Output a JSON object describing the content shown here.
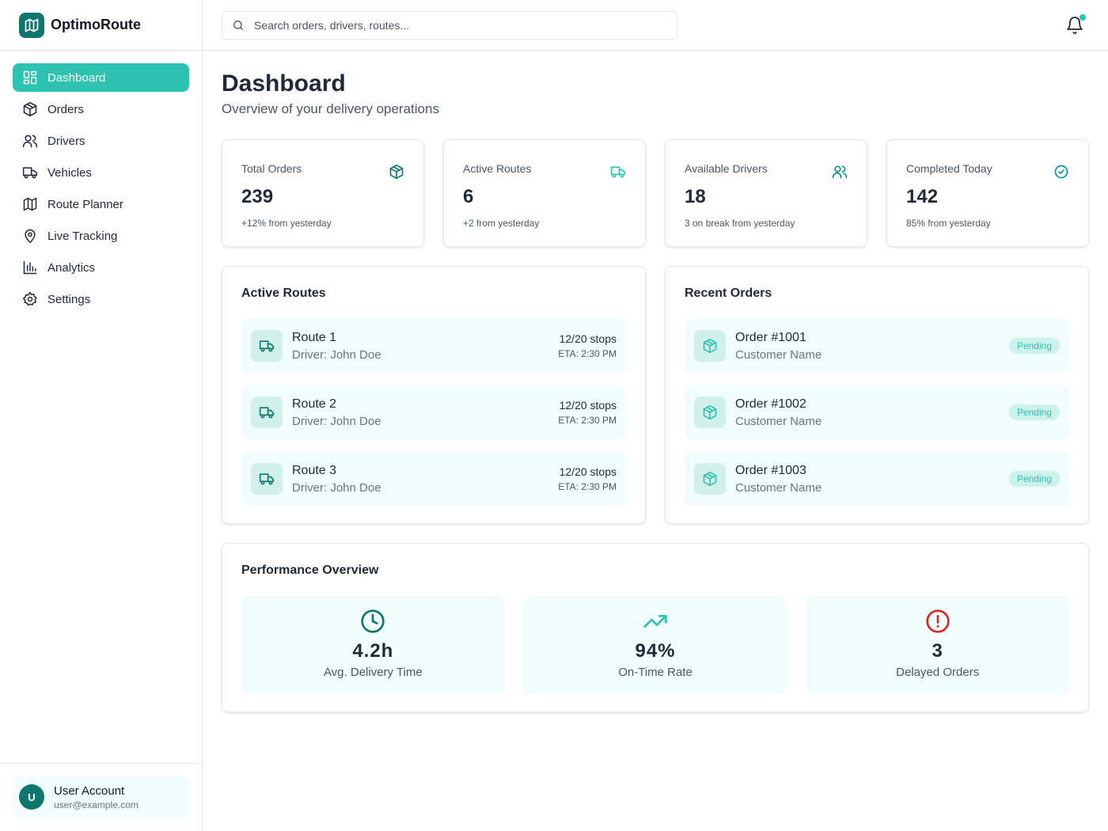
{
  "brand": {
    "name": "OptimoRoute",
    "logo_icon": "map-icon",
    "accent": "#2cc4b0",
    "brand_color": "#0f766e"
  },
  "sidebar": {
    "items": [
      {
        "label": "Dashboard",
        "icon": "dashboard-icon",
        "active": true
      },
      {
        "label": "Orders",
        "icon": "package-icon"
      },
      {
        "label": "Drivers",
        "icon": "users-icon"
      },
      {
        "label": "Vehicles",
        "icon": "truck-icon"
      },
      {
        "label": "Route Planner",
        "icon": "map-icon"
      },
      {
        "label": "Live Tracking",
        "icon": "map-pin-icon"
      },
      {
        "label": "Analytics",
        "icon": "bar-chart-icon"
      },
      {
        "label": "Settings",
        "icon": "gear-icon"
      }
    ],
    "user": {
      "initial": "U",
      "name": "User Account",
      "email": "user@example.com"
    }
  },
  "header": {
    "search_placeholder": "Search orders, drivers, routes...",
    "search_value": "",
    "notification_dot": true
  },
  "page": {
    "title": "Dashboard",
    "subtitle": "Overview of your delivery operations"
  },
  "stats": [
    {
      "label": "Total Orders",
      "value": "239",
      "sub": "+12% from yesterday",
      "icon": "package-icon"
    },
    {
      "label": "Active Routes",
      "value": "6",
      "sub": "+2 from yesterday",
      "icon": "truck-icon"
    },
    {
      "label": "Available Drivers",
      "value": "18",
      "sub": "3 on break from yesterday",
      "icon": "users-icon"
    },
    {
      "label": "Completed Today",
      "value": "142",
      "sub": "85% from yesterday",
      "icon": "check-circle-icon"
    }
  ],
  "active_routes": {
    "title": "Active Routes",
    "items": [
      {
        "name": "Route 1",
        "driver": "Driver: John Doe",
        "stops": "12/20 stops",
        "eta": "ETA: 2:30 PM"
      },
      {
        "name": "Route 2",
        "driver": "Driver: John Doe",
        "stops": "12/20 stops",
        "eta": "ETA: 2:30 PM"
      },
      {
        "name": "Route 3",
        "driver": "Driver: John Doe",
        "stops": "12/20 stops",
        "eta": "ETA: 2:30 PM"
      }
    ]
  },
  "recent_orders": {
    "title": "Recent Orders",
    "items": [
      {
        "name": "Order #1001",
        "customer": "Customer Name",
        "status": "Pending"
      },
      {
        "name": "Order #1002",
        "customer": "Customer Name",
        "status": "Pending"
      },
      {
        "name": "Order #1003",
        "customer": "Customer Name",
        "status": "Pending"
      }
    ]
  },
  "performance": {
    "title": "Performance Overview",
    "items": [
      {
        "value": "4.2h",
        "label": "Avg. Delivery Time",
        "icon": "clock-icon",
        "color": "#0f766e"
      },
      {
        "value": "94%",
        "label": "On-Time Rate",
        "icon": "trending-up-icon",
        "color": "#2cc4b0"
      },
      {
        "value": "3",
        "label": "Delayed Orders",
        "icon": "alert-circle-icon",
        "color": "#dc2626"
      }
    ]
  }
}
